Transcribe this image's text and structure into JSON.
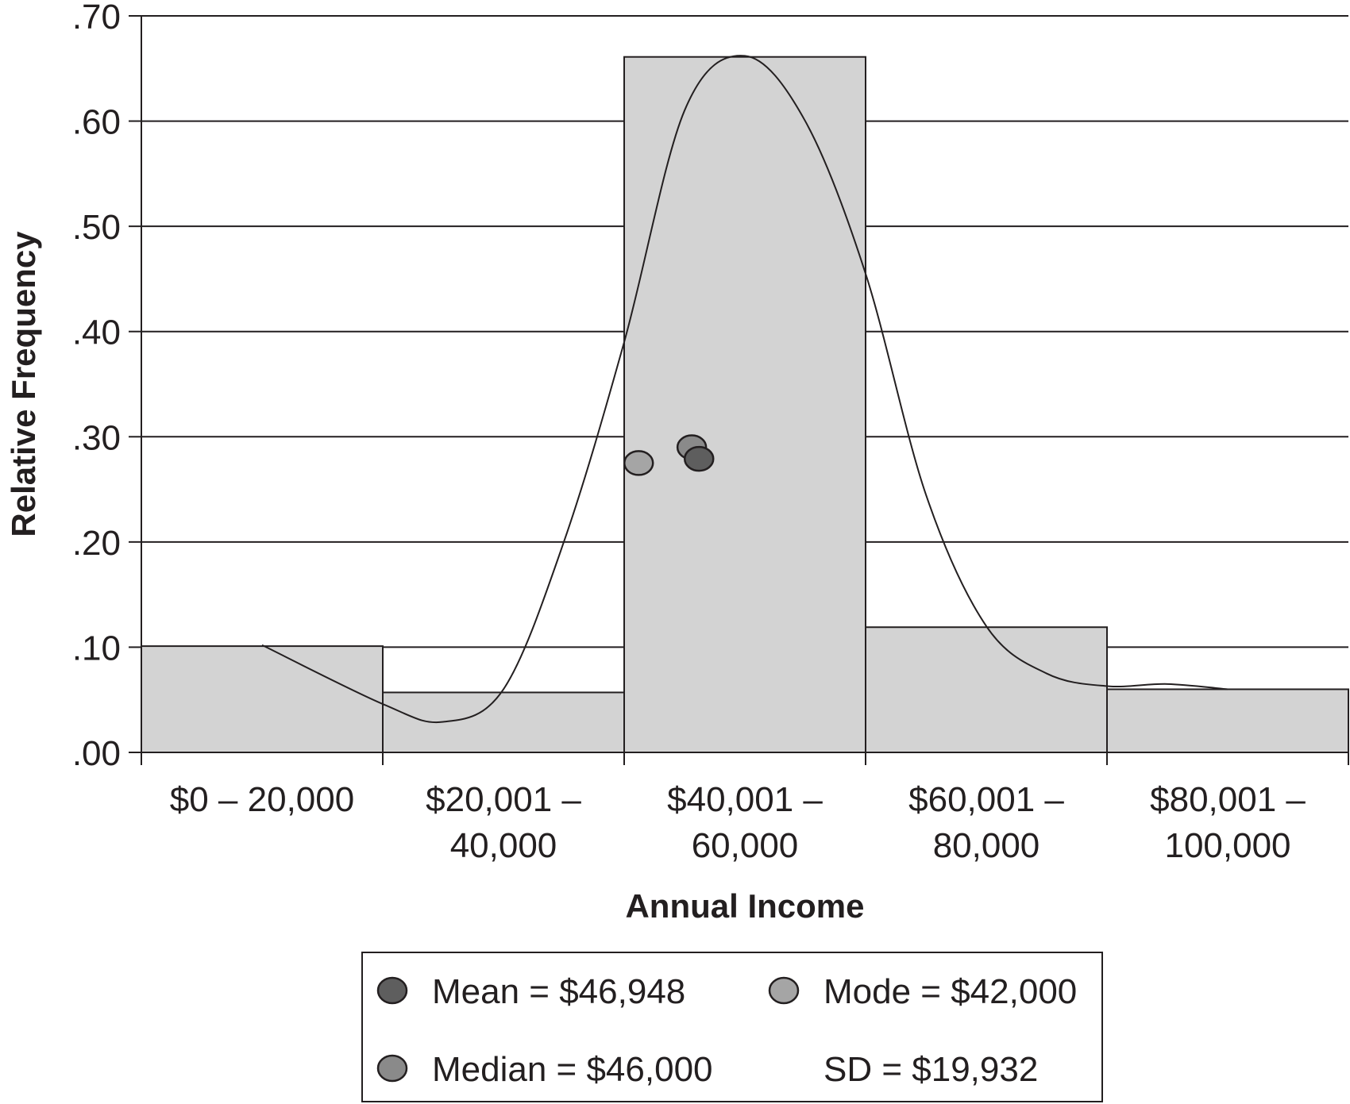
{
  "chart_data": {
    "type": "bar",
    "title": "",
    "xlabel": "Annual Income",
    "ylabel": "Relative Frequency",
    "ylim": [
      0,
      0.7
    ],
    "yticks": [
      ".00",
      ".10",
      ".20",
      ".30",
      ".40",
      ".50",
      ".60",
      ".70"
    ],
    "grid": true,
    "categories": [
      [
        "$0 – 20,000"
      ],
      [
        "$20,001 –",
        "40,000"
      ],
      [
        "$40,001 –",
        "60,000"
      ],
      [
        "$60,001 –",
        "80,000"
      ],
      [
        "$80,001 –",
        "100,000"
      ]
    ],
    "values": [
      0.101,
      0.057,
      0.661,
      0.119,
      0.06
    ],
    "bar_color": "#d3d3d3",
    "fitted_curve": {
      "x": [
        10000,
        20000,
        25000,
        30000,
        35000,
        40000,
        45000,
        50000,
        55000,
        60000,
        65000,
        70000,
        75000,
        80000,
        85000,
        90000
      ],
      "y": [
        0.102,
        0.046,
        0.029,
        0.06,
        0.2,
        0.39,
        0.61,
        0.662,
        0.6,
        0.455,
        0.245,
        0.12,
        0.075,
        0.063,
        0.065,
        0.06
      ]
    },
    "markers": [
      {
        "label": "Mode",
        "x": 41200,
        "y": 0.275,
        "color": "#a5a5a5"
      },
      {
        "label": "Median",
        "x": 45600,
        "y": 0.29,
        "color": "#8a8a8a"
      },
      {
        "label": "Mean",
        "x": 46200,
        "y": 0.279,
        "color": "#5e5e5e"
      }
    ],
    "legend": {
      "placement": "bottom",
      "entries": [
        {
          "label": "Mean = $46,948",
          "color": "#5e5e5e",
          "marker": true
        },
        {
          "label": "Mode = $42,000",
          "color": "#a5a5a5",
          "marker": true
        },
        {
          "label": "Median = $46,000",
          "color": "#8a8a8a",
          "marker": true
        },
        {
          "label": "SD = $19,932",
          "color": "",
          "marker": false
        }
      ]
    }
  }
}
